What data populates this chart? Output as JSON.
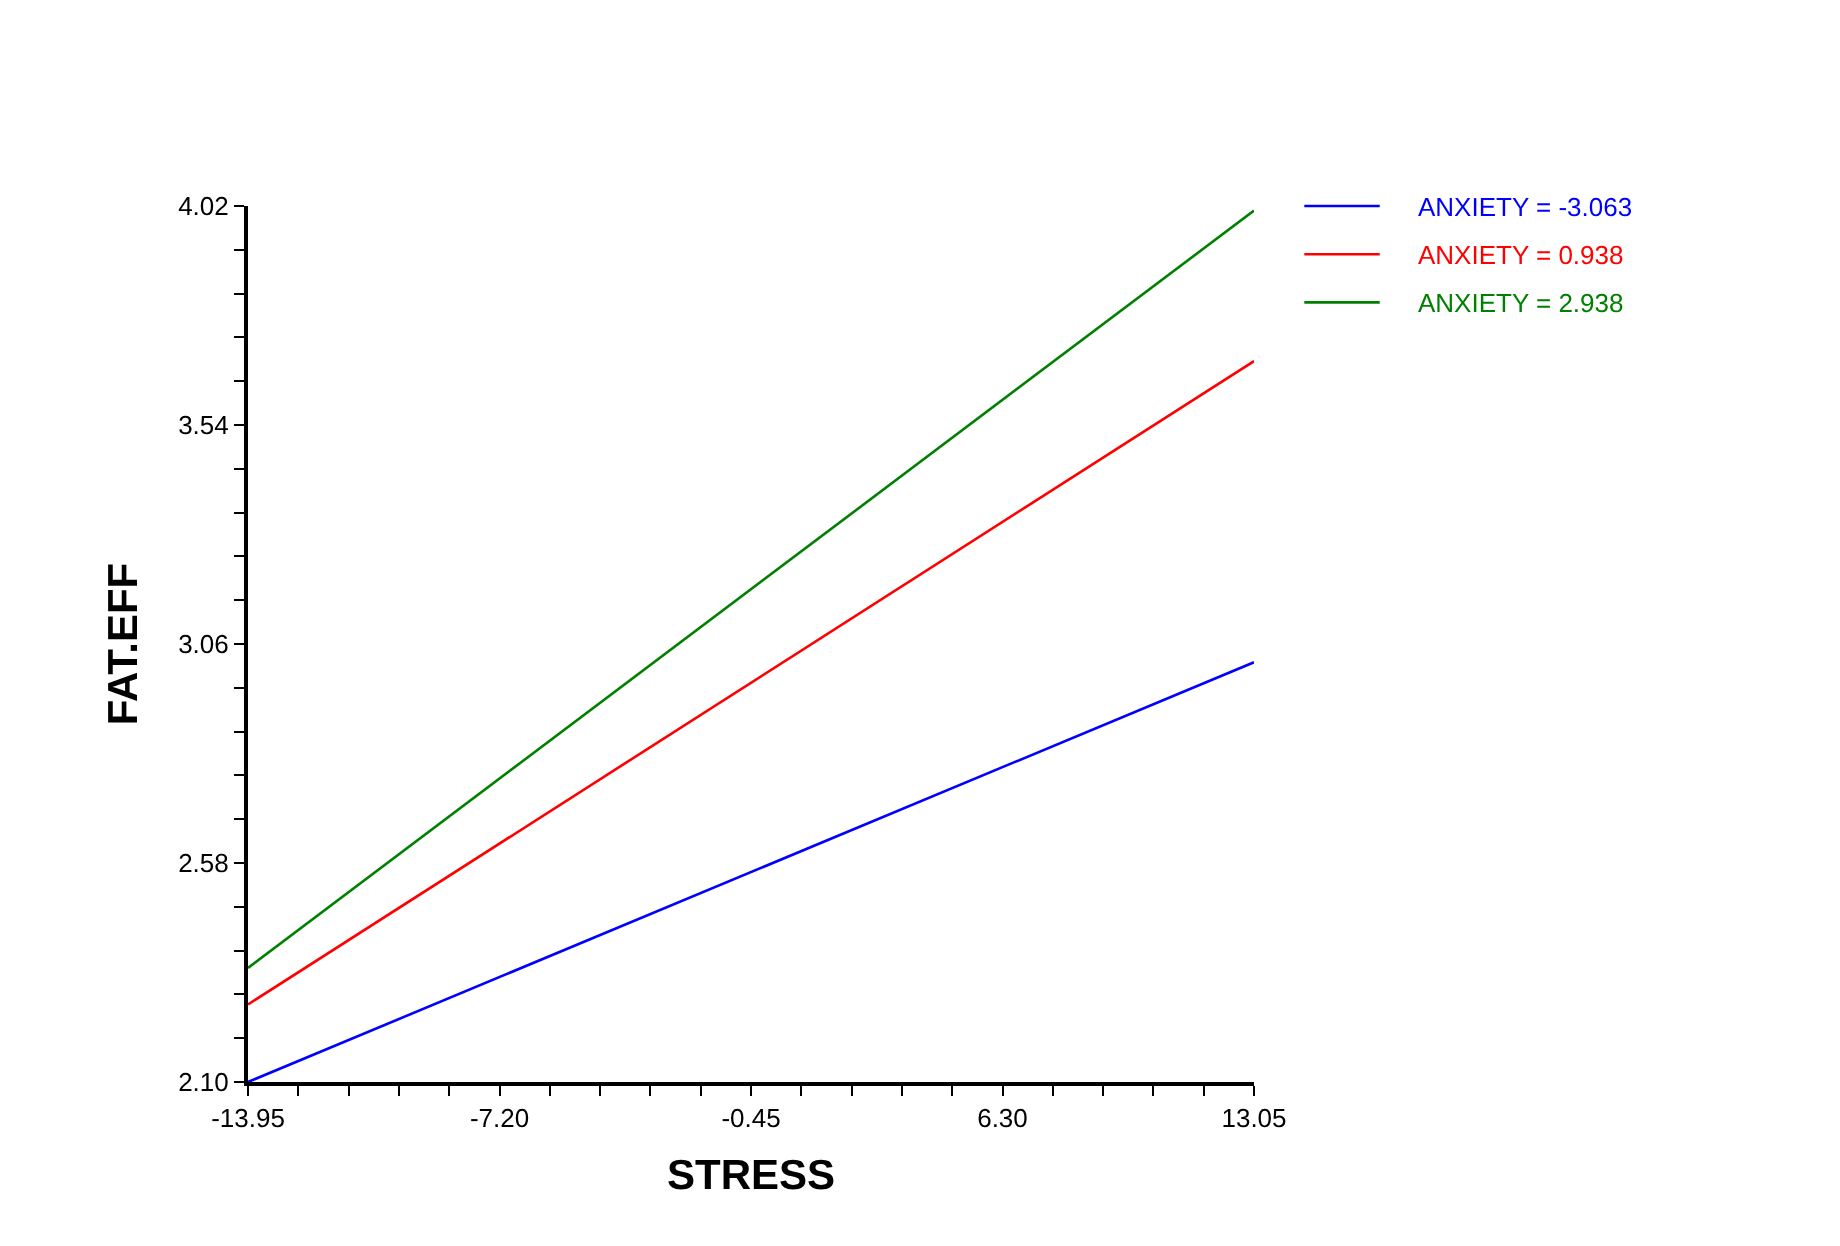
{
  "chart_data": {
    "type": "line",
    "xlabel": "STRESS",
    "ylabel": "FAT.EFF",
    "x": [
      -13.95,
      13.05
    ],
    "series": [
      {
        "name": "ANXIETY = -3.063",
        "color": "#0000ff",
        "values": [
          2.1,
          3.02
        ]
      },
      {
        "name": "ANXIETY = 0.938",
        "color": "#ff0000",
        "values": [
          2.27,
          3.68
        ]
      },
      {
        "name": "ANXIETY = 2.938",
        "color": "#008000",
        "values": [
          2.35,
          4.01
        ]
      }
    ],
    "xlim": [
      -13.95,
      13.05
    ],
    "ylim": [
      2.1,
      4.02
    ],
    "xticks": [
      {
        "value": -13.95,
        "label": "-13.95"
      },
      {
        "value": -12.6,
        "label": null
      },
      {
        "value": -11.25,
        "label": null
      },
      {
        "value": -9.9,
        "label": null
      },
      {
        "value": -8.55,
        "label": null
      },
      {
        "value": -7.2,
        "label": "-7.20"
      },
      {
        "value": -5.85,
        "label": null
      },
      {
        "value": -4.5,
        "label": null
      },
      {
        "value": -3.15,
        "label": null
      },
      {
        "value": -1.8,
        "label": null
      },
      {
        "value": -0.45,
        "label": "-0.45"
      },
      {
        "value": 0.9,
        "label": null
      },
      {
        "value": 2.25,
        "label": null
      },
      {
        "value": 3.6,
        "label": null
      },
      {
        "value": 4.95,
        "label": null
      },
      {
        "value": 6.3,
        "label": "6.30"
      },
      {
        "value": 7.65,
        "label": null
      },
      {
        "value": 9.0,
        "label": null
      },
      {
        "value": 10.35,
        "label": null
      },
      {
        "value": 11.7,
        "label": null
      },
      {
        "value": 13.05,
        "label": "13.05"
      }
    ],
    "yticks": [
      {
        "value": 2.1,
        "label": "2.10"
      },
      {
        "value": 2.196,
        "label": null
      },
      {
        "value": 2.292,
        "label": null
      },
      {
        "value": 2.388,
        "label": null
      },
      {
        "value": 2.484,
        "label": null
      },
      {
        "value": 2.58,
        "label": "2.58"
      },
      {
        "value": 2.676,
        "label": null
      },
      {
        "value": 2.772,
        "label": null
      },
      {
        "value": 2.868,
        "label": null
      },
      {
        "value": 2.964,
        "label": null
      },
      {
        "value": 3.06,
        "label": "3.06"
      },
      {
        "value": 3.156,
        "label": null
      },
      {
        "value": 3.252,
        "label": null
      },
      {
        "value": 3.348,
        "label": null
      },
      {
        "value": 3.444,
        "label": null
      },
      {
        "value": 3.54,
        "label": "3.54"
      },
      {
        "value": 3.636,
        "label": null
      },
      {
        "value": 3.732,
        "label": null
      },
      {
        "value": 3.828,
        "label": null
      },
      {
        "value": 3.924,
        "label": null
      },
      {
        "value": 4.02,
        "label": "4.02"
      }
    ],
    "legend": "top right",
    "line_style": "solid"
  }
}
